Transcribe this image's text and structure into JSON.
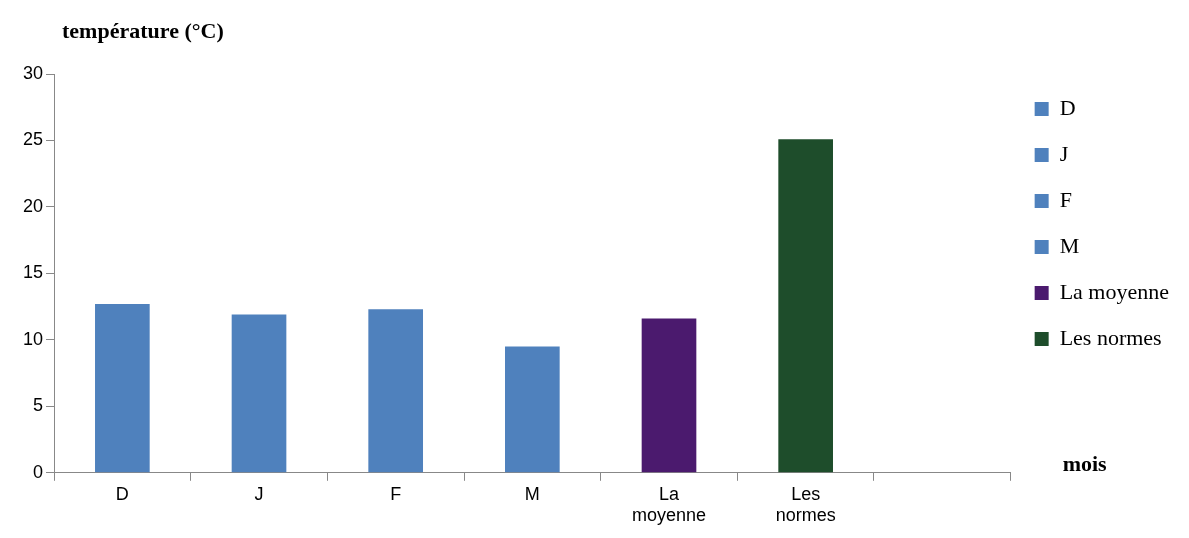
{
  "chart_data": {
    "type": "bar",
    "ylabel": "température (°C)",
    "xlabel": "mois",
    "categories": [
      "D",
      "J",
      "F",
      "M",
      "La moyenne",
      "Les normes",
      null
    ],
    "series": [
      {
        "name": "D",
        "color": "#4f81bd",
        "values": [
          12.7,
          null,
          null,
          null,
          null,
          null,
          null
        ]
      },
      {
        "name": "J",
        "color": "#4f81bd",
        "values": [
          null,
          11.9,
          null,
          null,
          null,
          null,
          null
        ]
      },
      {
        "name": "F",
        "color": "#4f81bd",
        "values": [
          null,
          null,
          12.3,
          null,
          null,
          null,
          null
        ]
      },
      {
        "name": "M",
        "color": "#4f81bd",
        "values": [
          null,
          null,
          null,
          9.5,
          null,
          null,
          null
        ]
      },
      {
        "name": "La moyenne",
        "color": "#4b1a6e",
        "values": [
          null,
          null,
          null,
          null,
          11.6,
          null,
          null
        ]
      },
      {
        "name": "Les normes",
        "color": "#1e4d2b",
        "values": [
          null,
          null,
          null,
          null,
          null,
          25.1,
          null
        ]
      }
    ],
    "ylim": [
      0,
      30
    ],
    "yticks": [
      0,
      5,
      10,
      15,
      20,
      25,
      30
    ],
    "grid": false,
    "legend": "top right"
  }
}
